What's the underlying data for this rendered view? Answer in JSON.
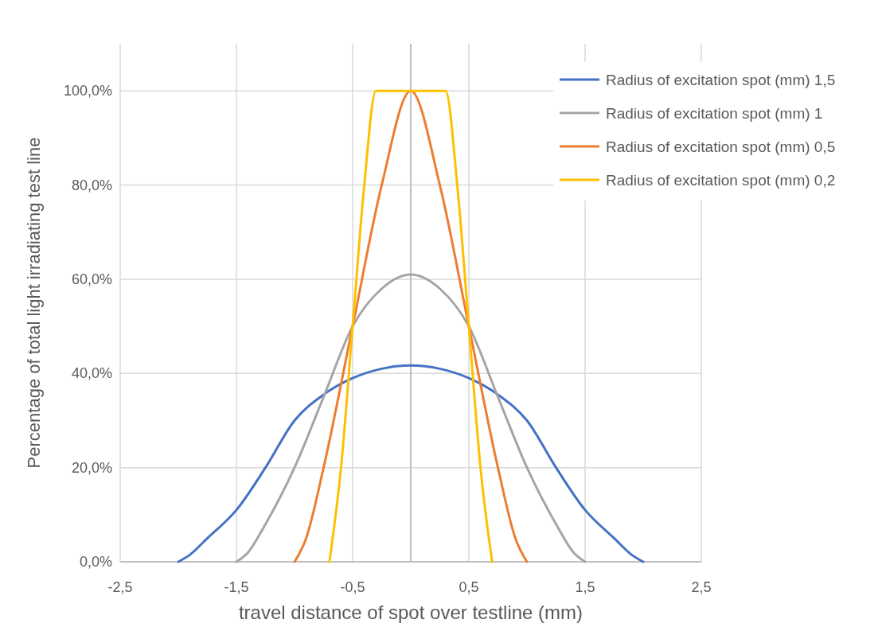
{
  "chart_data": {
    "type": "line",
    "xlabel": "travel distance of spot over testline (mm)",
    "ylabel": "Percentage of total light irradiating test line",
    "xlim": [
      -2.5,
      2.5
    ],
    "ylim": [
      0,
      110
    ],
    "xticks": [
      {
        "value": -2.5,
        "label": "-2,5"
      },
      {
        "value": -1.5,
        "label": "-1,5"
      },
      {
        "value": -0.5,
        "label": "-0,5"
      },
      {
        "value": 0.5,
        "label": "0,5"
      },
      {
        "value": 1.5,
        "label": "1,5"
      },
      {
        "value": 2.5,
        "label": "2,5"
      }
    ],
    "yticks": [
      {
        "value": 0,
        "label": "0,0%"
      },
      {
        "value": 20,
        "label": "20,0%"
      },
      {
        "value": 40,
        "label": "40,0%"
      },
      {
        "value": 60,
        "label": "60,0%"
      },
      {
        "value": 80,
        "label": "80,0%"
      },
      {
        "value": 100,
        "label": "100,0%"
      }
    ],
    "grid": true,
    "legend": "top right",
    "line_style": "solid",
    "series": [
      {
        "name": "Radius of excitation spot (mm) 1,5",
        "color": "#4472c4",
        "x": [
          -2,
          -1.9,
          -1.75,
          -1.5,
          -1.25,
          -1,
          -0.75,
          -0.5,
          -0.25,
          0,
          0.25,
          0.5,
          0.75,
          1,
          1.25,
          1.5,
          1.75,
          1.9,
          2
        ],
        "values": [
          0,
          1.5,
          5,
          11,
          20,
          30,
          35.5,
          39,
          41,
          41.7,
          41,
          39,
          35.5,
          30,
          20,
          11,
          5,
          1.5,
          0
        ]
      },
      {
        "name": "Radius of excitation spot (mm) 1",
        "color": "#a5a5a5",
        "x": [
          -1.5,
          -1.4,
          -1.25,
          -1,
          -0.75,
          -0.5,
          -0.25,
          0,
          0.25,
          0.5,
          0.75,
          1,
          1.25,
          1.4,
          1.5
        ],
        "values": [
          0,
          2,
          8,
          20,
          35,
          50,
          58,
          61,
          58,
          50,
          35,
          20,
          8,
          2,
          0
        ]
      },
      {
        "name": "Radius of excitation spot (mm) 0,5",
        "color": "#ed7d31",
        "x": [
          -1,
          -0.9,
          -0.75,
          -0.5,
          -0.25,
          0,
          0.25,
          0.5,
          0.75,
          0.9,
          1
        ],
        "values": [
          0,
          5,
          20,
          50,
          80,
          100,
          80,
          50,
          20,
          5,
          0
        ]
      },
      {
        "name": "Radius of excitation spot (mm) 0,2",
        "color": "#ffc000",
        "x": [
          -0.7,
          -0.6,
          -0.5,
          -0.4,
          -0.3,
          0.3,
          0.4,
          0.5,
          0.6,
          0.7
        ],
        "values": [
          0,
          20,
          50,
          80,
          100,
          100,
          80,
          50,
          20,
          0
        ]
      }
    ]
  }
}
